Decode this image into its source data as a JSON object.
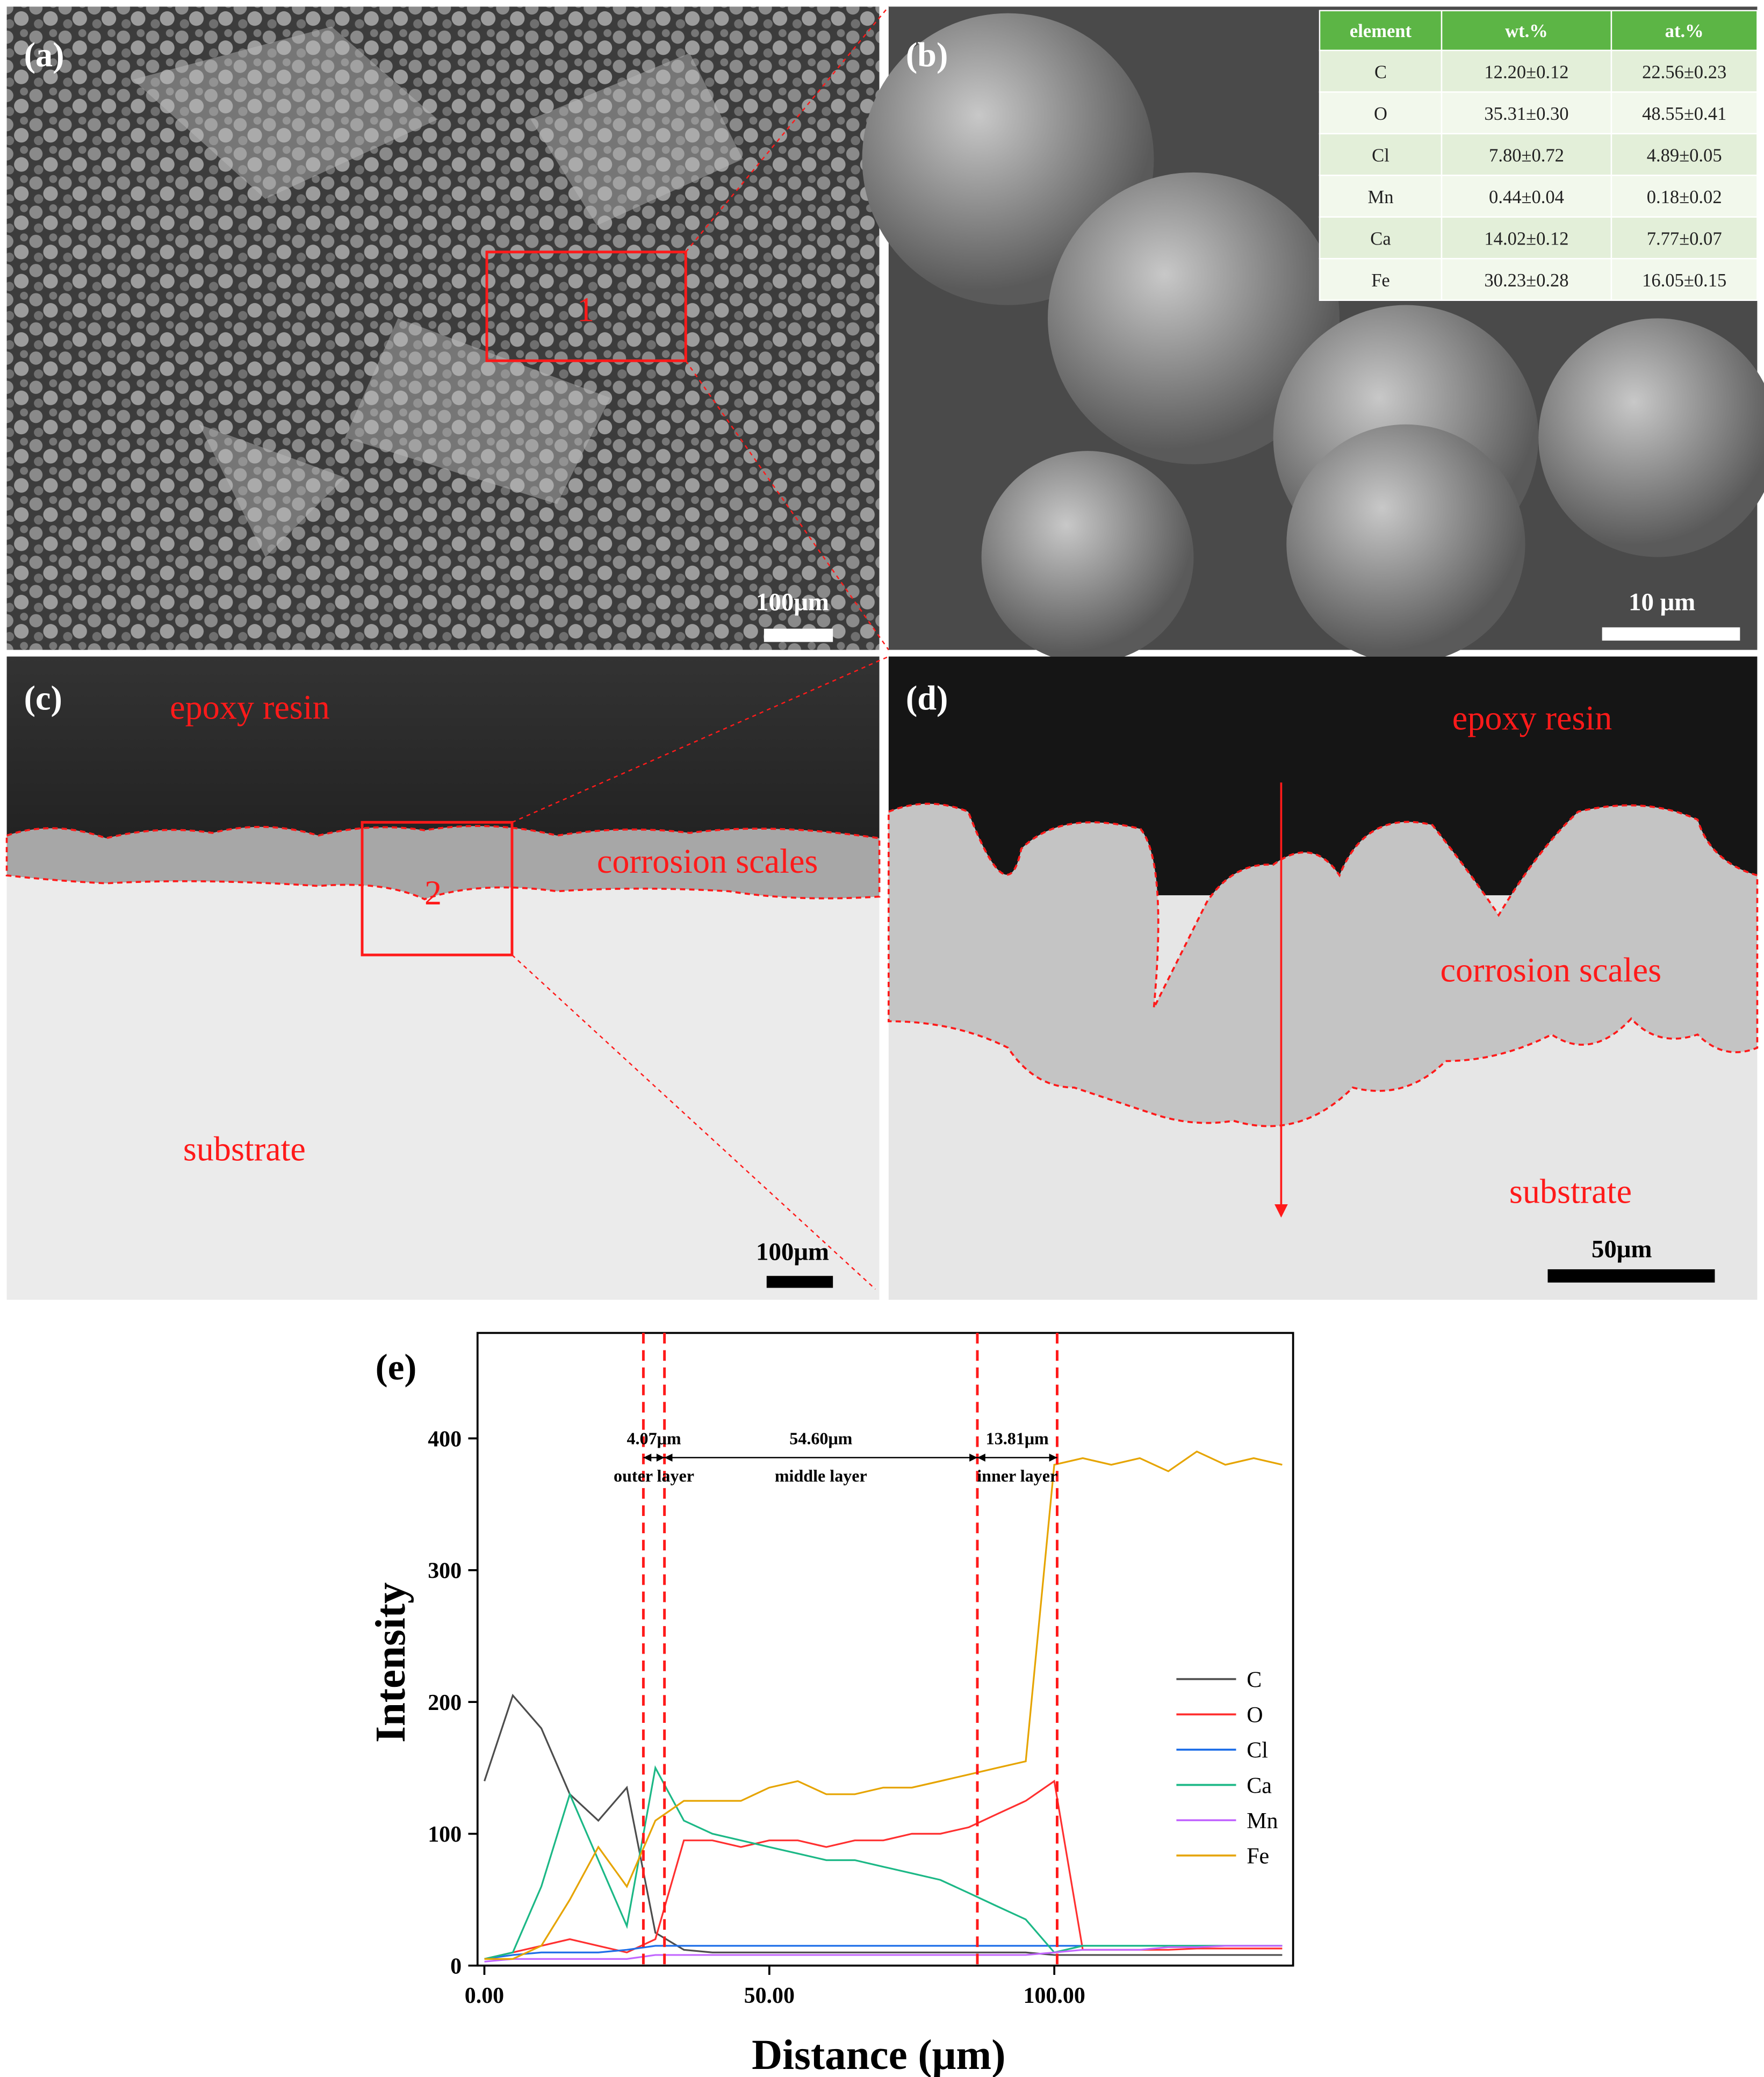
{
  "panels": {
    "a": {
      "label": "(a)",
      "region": "1",
      "scale_bar": "100μm"
    },
    "b": {
      "label": "(b)",
      "scale_bar": "10 μm"
    },
    "c": {
      "label": "(c)",
      "top": "epoxy resin",
      "middle": "corrosion scales",
      "region": "2",
      "bottom": "substrate",
      "scale_bar": "100μm"
    },
    "d": {
      "label": "(d)",
      "top": "epoxy resin",
      "middle": "corrosion scales",
      "bottom": "substrate",
      "scale_bar": "50μm"
    },
    "e": {
      "label": "(e)"
    }
  },
  "table": {
    "header": [
      "element",
      "wt.%",
      "at.%"
    ],
    "rows": [
      [
        "C",
        "12.20±0.12",
        "22.56±0.23"
      ],
      [
        "O",
        "35.31±0.30",
        "48.55±0.41"
      ],
      [
        "Cl",
        "7.80±0.72",
        "4.89±0.05"
      ],
      [
        "Mn",
        "0.44±0.04",
        "0.18±0.02"
      ],
      [
        "Ca",
        "14.02±0.12",
        "7.77±0.07"
      ],
      [
        "Fe",
        "30.23±0.28",
        "16.05±0.15"
      ]
    ]
  },
  "chart_data": {
    "type": "line",
    "x_label": "Distance (μm)",
    "y_label": "Intensity",
    "x": [
      0,
      5,
      10,
      15,
      20,
      25,
      30,
      35,
      40,
      45,
      50,
      55,
      60,
      65,
      70,
      75,
      80,
      85,
      90,
      95,
      100,
      105,
      110,
      115,
      120,
      125,
      130,
      135,
      140
    ],
    "series": [
      {
        "name": "C",
        "color": "#4d4d4d",
        "values": [
          140,
          205,
          180,
          130,
          110,
          135,
          25,
          12,
          10,
          10,
          10,
          10,
          10,
          10,
          10,
          10,
          10,
          10,
          10,
          10,
          8,
          8,
          8,
          8,
          8,
          8,
          8,
          8,
          8
        ]
      },
      {
        "name": "O",
        "color": "#ff3030",
        "values": [
          5,
          10,
          15,
          20,
          15,
          10,
          20,
          95,
          95,
          90,
          95,
          95,
          90,
          95,
          95,
          100,
          100,
          105,
          115,
          125,
          140,
          12,
          12,
          12,
          12,
          13,
          13,
          13,
          13
        ]
      },
      {
        "name": "Cl",
        "color": "#1f6fe8",
        "values": [
          5,
          8,
          10,
          10,
          10,
          12,
          15,
          15,
          15,
          15,
          15,
          15,
          15,
          15,
          15,
          15,
          15,
          15,
          15,
          15,
          15,
          15,
          15,
          15,
          15,
          15,
          15,
          15,
          15
        ]
      },
      {
        "name": "Ca",
        "color": "#1cb886",
        "values": [
          5,
          10,
          60,
          130,
          80,
          30,
          150,
          110,
          100,
          95,
          90,
          85,
          80,
          80,
          75,
          70,
          65,
          55,
          45,
          35,
          10,
          15,
          15,
          15,
          15,
          15,
          15,
          15,
          15
        ]
      },
      {
        "name": "Mn",
        "color": "#c266ff",
        "values": [
          3,
          5,
          5,
          5,
          5,
          5,
          8,
          8,
          8,
          8,
          8,
          8,
          8,
          8,
          8,
          8,
          8,
          8,
          8,
          8,
          10,
          12,
          12,
          12,
          14,
          14,
          15,
          15,
          15
        ]
      },
      {
        "name": "Fe",
        "color": "#e6a400",
        "values": [
          5,
          5,
          15,
          50,
          90,
          60,
          110,
          125,
          125,
          125,
          135,
          140,
          130,
          130,
          135,
          135,
          140,
          145,
          150,
          155,
          380,
          385,
          380,
          385,
          375,
          390,
          380,
          385,
          380
        ]
      }
    ],
    "xlim": [
      -1.2,
      141.9
    ],
    "ylim": [
      0,
      480
    ],
    "xticks": [
      {
        "value": 0,
        "label": "0.00"
      },
      {
        "value": 50,
        "label": "50.00"
      },
      {
        "value": 100,
        "label": "100.00"
      }
    ],
    "yticks": [
      0,
      100,
      200,
      300,
      400
    ],
    "boundaries": [
      27.9,
      31.6,
      86.5,
      100.5
    ],
    "layers": [
      {
        "thickness": "4.07μm",
        "name": "outer layer"
      },
      {
        "thickness": "54.60μm",
        "name": "middle layer"
      },
      {
        "thickness": "13.81μm",
        "name": "inner layer"
      }
    ]
  }
}
